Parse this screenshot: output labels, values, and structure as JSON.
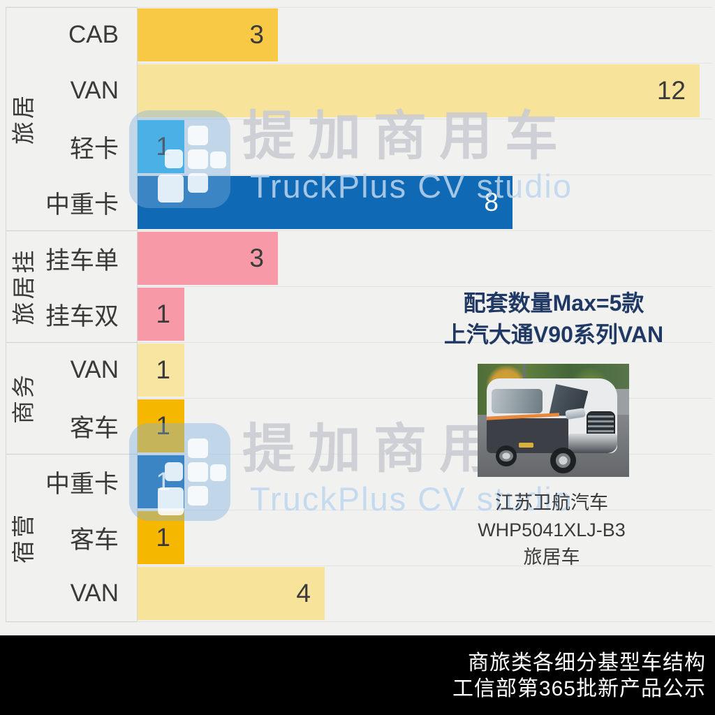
{
  "chart_data": {
    "type": "bar",
    "orientation": "horizontal",
    "title": "商旅类各细分基型车结构",
    "value_axis_max": 12,
    "grid": true,
    "groups": [
      {
        "label": "旅居",
        "items": [
          {
            "category": "CAB",
            "value": 3,
            "color": "#F7C944",
            "value_color": "#3a3a3a"
          },
          {
            "category": "VAN",
            "value": 12,
            "color": "#F8E39B",
            "value_color": "#3a3a3a"
          },
          {
            "category": "轻卡",
            "value": 1,
            "color": "#29B1E9",
            "value_color": "#2a2a2a"
          },
          {
            "category": "中重卡",
            "value": 8,
            "color": "#1069B4",
            "value_color": "#FFFFFF"
          }
        ]
      },
      {
        "label": "旅居挂",
        "items": [
          {
            "category": "挂车单",
            "value": 3,
            "color": "#F899A8",
            "value_color": "#3a3a3a"
          },
          {
            "category": "挂车双",
            "value": 1,
            "color": "#F899A8",
            "value_color": "#3a3a3a"
          }
        ]
      },
      {
        "label": "商务",
        "items": [
          {
            "category": "VAN",
            "value": 1,
            "color": "#F8E5A2",
            "value_color": "#3a3a3a"
          },
          {
            "category": "客车",
            "value": 1,
            "color": "#F6B700",
            "value_color": "#3a3a3a"
          }
        ]
      },
      {
        "label": "宿营",
        "items": [
          {
            "category": "中重卡",
            "value": 1,
            "color": "#1069B4",
            "value_color": "#FFFFFF"
          },
          {
            "category": "客车",
            "value": 1,
            "color": "#F6B700",
            "value_color": "#3a3a3a"
          },
          {
            "category": "VAN",
            "value": 4,
            "color": "#F8E39B",
            "value_color": "#3a3a3a"
          }
        ]
      }
    ]
  },
  "annotation": {
    "line1": "配套数量Max=5款",
    "line2": "上汽大通V90系列VAN",
    "color": "#1F3864"
  },
  "vehicle_caption": {
    "line1": "江苏卫航汽车",
    "line2": "WHP5041XLJ-B3",
    "line3": "旅居车"
  },
  "watermark": {
    "brand": "提加商用车",
    "subtitle": "TruckPlus CV studio"
  },
  "footer": {
    "line1": "商旅类各细分基型车结构",
    "line2": "工信部第365批新产品公示"
  }
}
